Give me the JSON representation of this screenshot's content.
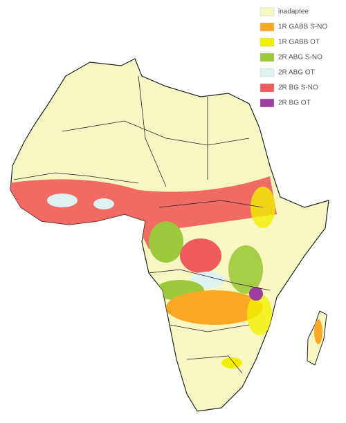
{
  "legend": {
    "items": [
      {
        "label": "inadaptee",
        "color": "#f7f7c4"
      },
      {
        "label": "1R GABB S-NO",
        "color": "#f9a825"
      },
      {
        "label": "1R GABB OT",
        "color": "#f2f000"
      },
      {
        "label": "2R ABG S-NO",
        "color": "#9dc83c"
      },
      {
        "label": "2R ABG OT",
        "color": "#dff2f2"
      },
      {
        "label": "2R BG S-NO",
        "color": "#ef5b5b"
      },
      {
        "label": "2R BG OT",
        "color": "#9c3fa0"
      }
    ]
  }
}
